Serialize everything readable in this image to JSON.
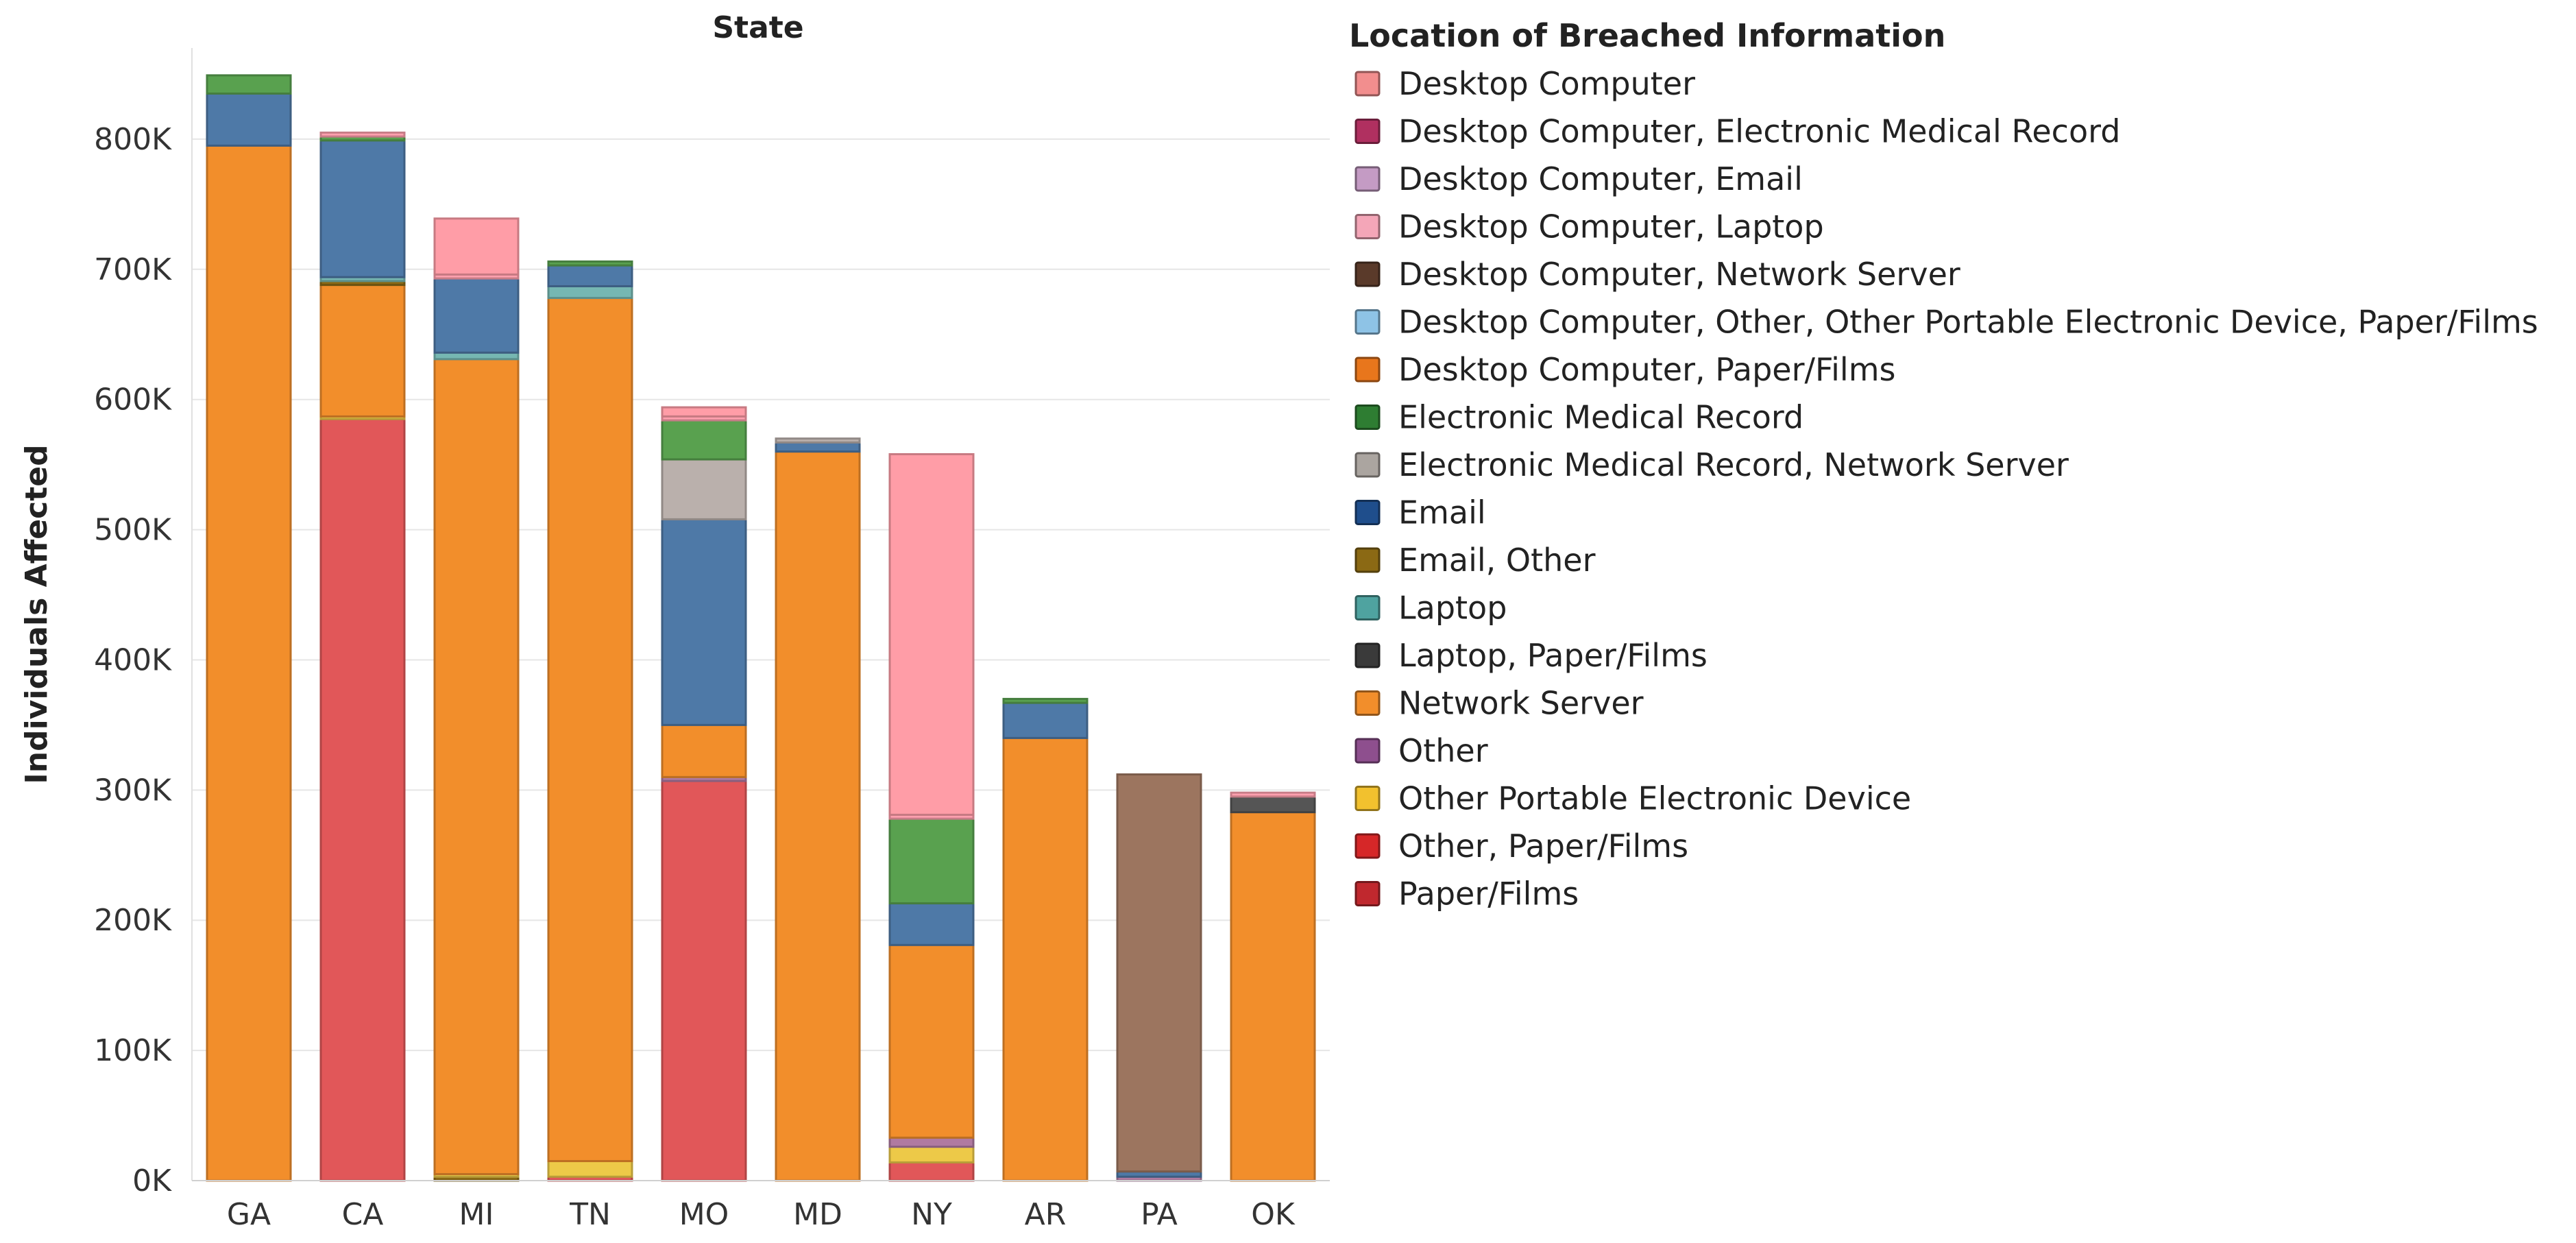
{
  "chart_data": {
    "type": "stacked-bar",
    "title": "State",
    "xlabel": "",
    "ylabel": "Individuals Affected",
    "ylim": [
      0,
      870000
    ],
    "y_ticks": [
      0,
      100000,
      200000,
      300000,
      400000,
      500000,
      600000,
      700000,
      800000
    ],
    "y_tick_labels": [
      "0K",
      "100K",
      "200K",
      "300K",
      "400K",
      "500K",
      "600K",
      "700K",
      "800K"
    ],
    "grid": true,
    "legend_position": "right",
    "categories": [
      "GA",
      "CA",
      "MI",
      "TN",
      "MO",
      "MD",
      "NY",
      "AR",
      "PA",
      "OK"
    ],
    "legend": {
      "title": "Location of Breached Information",
      "items": [
        {
          "label": "Desktop Computer",
          "color": "#F28E8E"
        },
        {
          "label": "Desktop Computer, Electronic Medical Record",
          "color": "#B03060"
        },
        {
          "label": "Desktop Computer, Email",
          "color": "#C49BC4"
        },
        {
          "label": "Desktop Computer, Laptop",
          "color": "#F4A6B8"
        },
        {
          "label": "Desktop Computer, Network Server",
          "color": "#5A3A2A"
        },
        {
          "label": "Desktop Computer, Other, Other Portable Electronic Device, Paper/Films",
          "color": "#8EC3E6"
        },
        {
          "label": "Desktop Computer, Paper/Films",
          "color": "#E8761C"
        },
        {
          "label": "Electronic Medical Record",
          "color": "#2E7D32"
        },
        {
          "label": "Electronic Medical Record, Network Server",
          "color": "#ABA5A0"
        },
        {
          "label": "Email",
          "color": "#1F4E8C"
        },
        {
          "label": "Email, Other",
          "color": "#8B6914"
        },
        {
          "label": "Laptop",
          "color": "#4FA3A0"
        },
        {
          "label": "Laptop, Paper/Films",
          "color": "#3A3A3A"
        },
        {
          "label": "Network Server",
          "color": "#F28E2B"
        },
        {
          "label": "Other",
          "color": "#8E4F8E"
        },
        {
          "label": "Other Portable Electronic Device",
          "color": "#F2C12E"
        },
        {
          "label": "Other, Paper/Films",
          "color": "#D62728"
        },
        {
          "label": "Paper/Films",
          "color": "#C0282E"
        }
      ]
    },
    "segment_colors": {
      "Network Server": "#F28E2B",
      "Email": "#4E79A7",
      "Electronic Medical Record": "#59A14F",
      "Desktop Computer, Laptop": "#FFA0AE",
      "Desktop Computer": "#FF9DA7",
      "Laptop": "#76B7B2",
      "Paper/Films": "#E15759",
      "Other Portable Electronic Device": "#EDC948",
      "Electronic Medical Record, Network Server": "#BAB0AC",
      "Desktop Computer, Network Server": "#9C755F",
      "Laptop, Paper/Films": "#555555",
      "Other": "#B07AA1",
      "Other, Paper/Films": "#D62728",
      "Email, Other": "#8B6914"
    },
    "series": [
      {
        "category": "GA",
        "segments": [
          {
            "name": "Network Server",
            "value": 795000
          },
          {
            "name": "Email",
            "value": 40000
          },
          {
            "name": "Electronic Medical Record",
            "value": 14000
          }
        ]
      },
      {
        "category": "CA",
        "segments": [
          {
            "name": "Paper/Films",
            "value": 585000
          },
          {
            "name": "Other Portable Electronic Device",
            "value": 2000
          },
          {
            "name": "Network Server",
            "value": 101000
          },
          {
            "name": "Email, Other",
            "value": 3000
          },
          {
            "name": "Laptop",
            "value": 3000
          },
          {
            "name": "Email",
            "value": 105000
          },
          {
            "name": "Electronic Medical Record",
            "value": 3000
          },
          {
            "name": "Desktop Computer, Laptop",
            "value": 3000
          }
        ]
      },
      {
        "category": "MI",
        "segments": [
          {
            "name": "Email, Other",
            "value": 3000
          },
          {
            "name": "Other Portable Electronic Device",
            "value": 2000
          },
          {
            "name": "Network Server",
            "value": 626000
          },
          {
            "name": "Laptop",
            "value": 5000
          },
          {
            "name": "Email",
            "value": 57000
          },
          {
            "name": "Desktop Computer, Laptop",
            "value": 3000
          },
          {
            "name": "Desktop Computer",
            "value": 43000
          }
        ]
      },
      {
        "category": "TN",
        "segments": [
          {
            "name": "Paper/Films",
            "value": 3000
          },
          {
            "name": "Other Portable Electronic Device",
            "value": 12000
          },
          {
            "name": "Network Server",
            "value": 663000
          },
          {
            "name": "Laptop",
            "value": 9000
          },
          {
            "name": "Email",
            "value": 16000
          },
          {
            "name": "Electronic Medical Record",
            "value": 3000
          }
        ]
      },
      {
        "category": "MO",
        "segments": [
          {
            "name": "Paper/Films",
            "value": 307000
          },
          {
            "name": "Other",
            "value": 3000
          },
          {
            "name": "Network Server",
            "value": 40000
          },
          {
            "name": "Email",
            "value": 158000
          },
          {
            "name": "Electronic Medical Record, Network Server",
            "value": 46000
          },
          {
            "name": "Electronic Medical Record",
            "value": 30000
          },
          {
            "name": "Desktop Computer, Laptop",
            "value": 3000
          },
          {
            "name": "Desktop Computer",
            "value": 7000
          }
        ]
      },
      {
        "category": "MD",
        "segments": [
          {
            "name": "Network Server",
            "value": 560000
          },
          {
            "name": "Email",
            "value": 7000
          },
          {
            "name": "Electronic Medical Record, Network Server",
            "value": 3000
          }
        ]
      },
      {
        "category": "NY",
        "segments": [
          {
            "name": "Paper/Films",
            "value": 14000
          },
          {
            "name": "Other Portable Electronic Device",
            "value": 12000
          },
          {
            "name": "Other",
            "value": 7000
          },
          {
            "name": "Network Server",
            "value": 148000
          },
          {
            "name": "Email",
            "value": 32000
          },
          {
            "name": "Electronic Medical Record",
            "value": 65000
          },
          {
            "name": "Desktop Computer, Laptop",
            "value": 3000
          },
          {
            "name": "Desktop Computer",
            "value": 277000
          }
        ]
      },
      {
        "category": "AR",
        "segments": [
          {
            "name": "Network Server",
            "value": 340000
          },
          {
            "name": "Email",
            "value": 27000
          },
          {
            "name": "Electronic Medical Record",
            "value": 3000
          }
        ]
      },
      {
        "category": "PA",
        "segments": [
          {
            "name": "Other",
            "value": 3000
          },
          {
            "name": "Email",
            "value": 4000
          },
          {
            "name": "Desktop Computer, Network Server",
            "value": 305000
          }
        ]
      },
      {
        "category": "OK",
        "segments": [
          {
            "name": "Network Server",
            "value": 283000
          },
          {
            "name": "Laptop, Paper/Films",
            "value": 12000
          },
          {
            "name": "Desktop Computer, Laptop",
            "value": 3000
          }
        ]
      }
    ]
  }
}
